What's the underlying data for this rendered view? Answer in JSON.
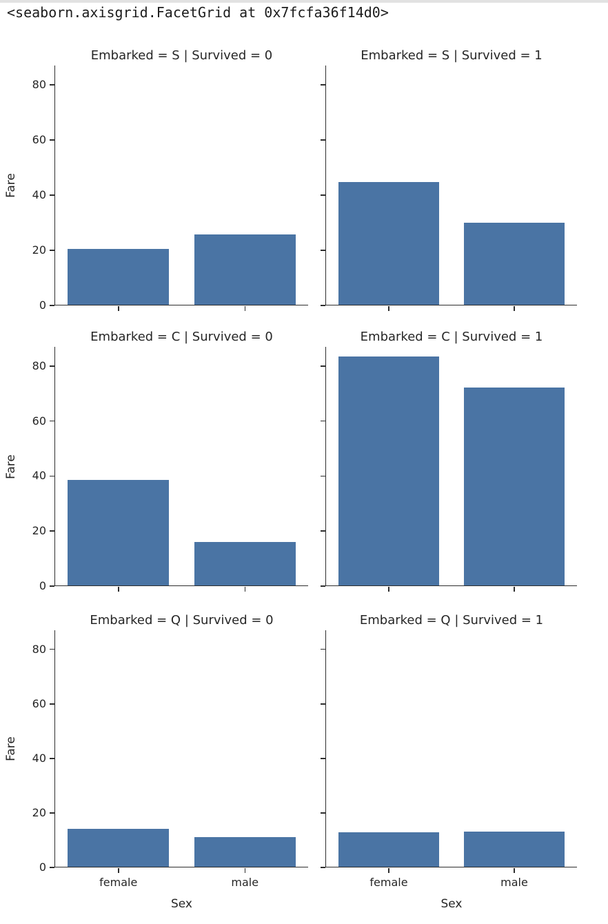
{
  "header": {
    "repr_text": "<seaborn.axisgrid.FacetGrid at 0x7fcfa36f14d0>"
  },
  "chart_data": {
    "type": "bar",
    "title": "",
    "facet_row_var": "Embarked",
    "facet_col_var": "Survived",
    "categories": [
      "female",
      "male"
    ],
    "xlabel": "Sex",
    "ylabel": "Fare",
    "ylim": [
      0,
      87
    ],
    "yticks": [
      0,
      20,
      40,
      60,
      80
    ],
    "grid": false,
    "legend": "none",
    "bar_color": "#4a74a4",
    "facets": [
      {
        "title": "Embarked = S | Survived = 0",
        "embarked": "S",
        "survived": 0,
        "values": [
          20.4,
          25.8
        ]
      },
      {
        "title": "Embarked = S | Survived = 1",
        "embarked": "S",
        "survived": 1,
        "values": [
          44.7,
          30.1
        ]
      },
      {
        "title": "Embarked = C | Survived = 0",
        "embarked": "C",
        "survived": 0,
        "values": [
          38.5,
          16.0
        ]
      },
      {
        "title": "Embarked = C | Survived = 1",
        "embarked": "C",
        "survived": 1,
        "values": [
          83.6,
          72.1
        ]
      },
      {
        "title": "Embarked = Q | Survived = 0",
        "embarked": "Q",
        "survived": 0,
        "values": [
          14.1,
          11.1
        ]
      },
      {
        "title": "Embarked = Q | Survived = 1",
        "embarked": "Q",
        "survived": 1,
        "values": [
          12.9,
          13.2
        ]
      }
    ]
  }
}
